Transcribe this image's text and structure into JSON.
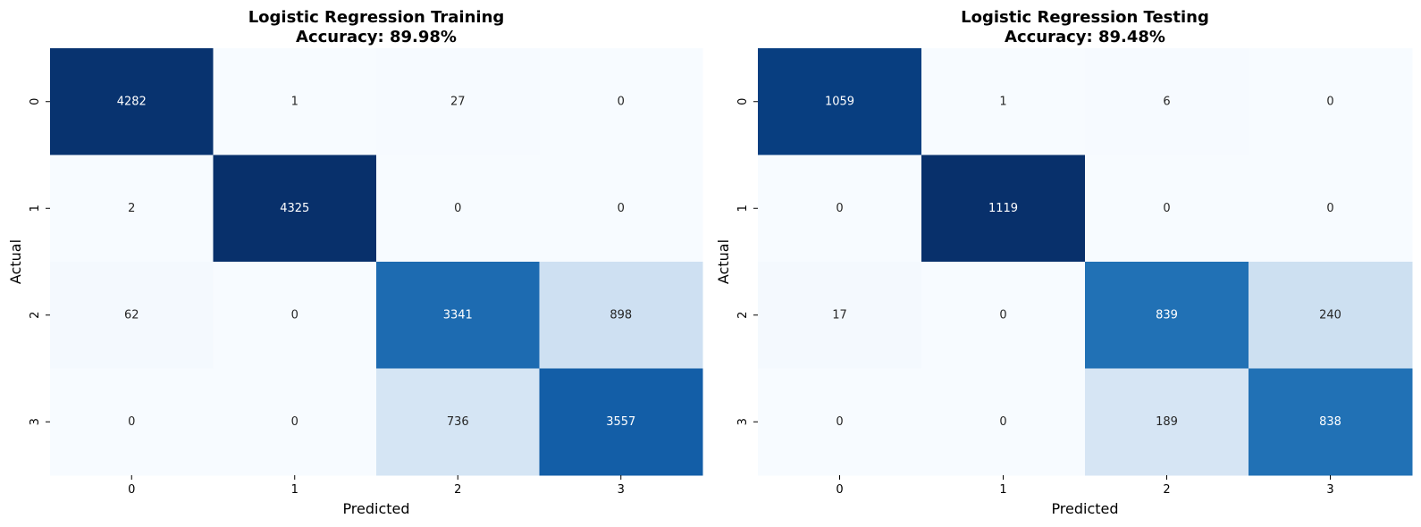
{
  "chart_data": [
    {
      "type": "heatmap",
      "title_line1": "Logistic Regression Training",
      "title_line2": "Accuracy: 89.98%",
      "xlabel": "Predicted",
      "ylabel": "Actual",
      "x_categories": [
        "0",
        "1",
        "2",
        "3"
      ],
      "y_categories": [
        "0",
        "1",
        "2",
        "3"
      ],
      "values": [
        [
          4282,
          1,
          27,
          0
        ],
        [
          2,
          4325,
          0,
          0
        ],
        [
          62,
          0,
          3341,
          898
        ],
        [
          0,
          0,
          736,
          3557
        ]
      ],
      "colormap": "Blues",
      "colorbar": false
    },
    {
      "type": "heatmap",
      "title_line1": "Logistic Regression Testing",
      "title_line2": "Accuracy: 89.48%",
      "xlabel": "Predicted",
      "ylabel": "Actual",
      "x_categories": [
        "0",
        "1",
        "2",
        "3"
      ],
      "y_categories": [
        "0",
        "1",
        "2",
        "3"
      ],
      "values": [
        [
          1059,
          1,
          6,
          0
        ],
        [
          0,
          1119,
          0,
          0
        ],
        [
          17,
          0,
          839,
          240
        ],
        [
          0,
          0,
          189,
          838
        ]
      ],
      "colormap": "Blues",
      "colorbar": false
    }
  ]
}
